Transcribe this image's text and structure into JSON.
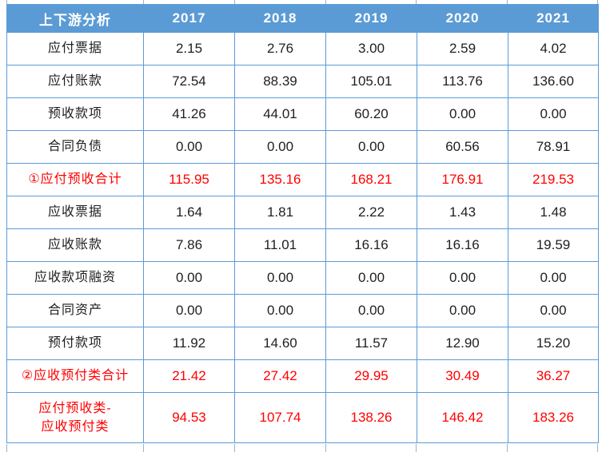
{
  "colors": {
    "header_bg": "#5b9bd5",
    "grid_border": "#5b9bd5",
    "tick": "#8fb6da",
    "highlight_text": "#ff0000",
    "body_text": "#1f1f1f"
  },
  "chart_data": {
    "type": "table",
    "title": "上下游分析",
    "columns": [
      "2017",
      "2018",
      "2019",
      "2020",
      "2021"
    ],
    "rows": [
      {
        "label": "应付票据",
        "values": [
          "2.15",
          "2.76",
          "3.00",
          "2.59",
          "4.02"
        ],
        "highlight": false,
        "tall": false
      },
      {
        "label": "应付账款",
        "values": [
          "72.54",
          "88.39",
          "105.01",
          "113.76",
          "136.60"
        ],
        "highlight": false,
        "tall": false
      },
      {
        "label": "预收款项",
        "values": [
          "41.26",
          "44.01",
          "60.20",
          "0.00",
          "0.00"
        ],
        "highlight": false,
        "tall": false
      },
      {
        "label": "合同负债",
        "values": [
          "0.00",
          "0.00",
          "0.00",
          "60.56",
          "78.91"
        ],
        "highlight": false,
        "tall": false
      },
      {
        "label": "①应付预收合计",
        "values": [
          "115.95",
          "135.16",
          "168.21",
          "176.91",
          "219.53"
        ],
        "highlight": true,
        "tall": false
      },
      {
        "label": "应收票据",
        "values": [
          "1.64",
          "1.81",
          "2.22",
          "1.43",
          "1.48"
        ],
        "highlight": false,
        "tall": false
      },
      {
        "label": "应收账款",
        "values": [
          "7.86",
          "11.01",
          "16.16",
          "16.16",
          "19.59"
        ],
        "highlight": false,
        "tall": false
      },
      {
        "label": "应收款项融资",
        "values": [
          "0.00",
          "0.00",
          "0.00",
          "0.00",
          "0.00"
        ],
        "highlight": false,
        "tall": false
      },
      {
        "label": "合同资产",
        "values": [
          "0.00",
          "0.00",
          "0.00",
          "0.00",
          "0.00"
        ],
        "highlight": false,
        "tall": false
      },
      {
        "label": "预付款项",
        "values": [
          "11.92",
          "14.60",
          "11.57",
          "12.90",
          "15.20"
        ],
        "highlight": false,
        "tall": false
      },
      {
        "label": "②应收预付类合计",
        "values": [
          "21.42",
          "27.42",
          "29.95",
          "30.49",
          "36.27"
        ],
        "highlight": true,
        "tall": false
      },
      {
        "label": "应付预收类-\n应收预付类",
        "values": [
          "94.53",
          "107.74",
          "138.26",
          "146.42",
          "183.26"
        ],
        "highlight": true,
        "tall": true
      }
    ]
  }
}
